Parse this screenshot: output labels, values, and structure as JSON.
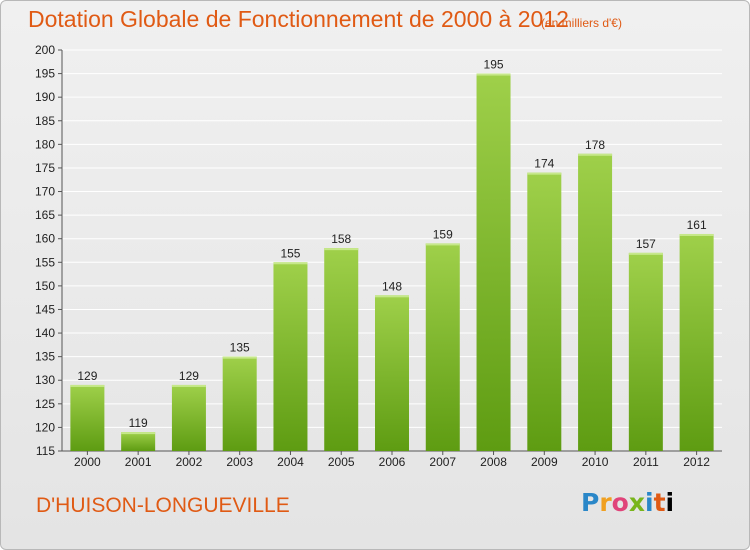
{
  "title": "Dotation Globale de Fonctionnement de 2000 à 2012",
  "unit_note": "(en milliers d'€)",
  "place": "D'HUISON-LONGUEVILLE",
  "logo": [
    "P",
    "r",
    "o",
    "x",
    "i",
    "t",
    "i"
  ],
  "colors": {
    "text_accent": "#e05a14",
    "bar_top": "#9fd04a",
    "bar_bottom": "#5e9c12",
    "grid": "#ffffff"
  },
  "chart_data": {
    "type": "bar",
    "title": "Dotation Globale de Fonctionnement de 2000 à 2012",
    "subtitle": "(en milliers d'€)",
    "categories": [
      "2000",
      "2001",
      "2002",
      "2003",
      "2004",
      "2005",
      "2006",
      "2007",
      "2008",
      "2009",
      "2010",
      "2011",
      "2012"
    ],
    "values": [
      129,
      119,
      129,
      135,
      155,
      158,
      148,
      159,
      195,
      174,
      178,
      157,
      161
    ],
    "ylim": [
      115,
      200
    ],
    "yticks": [
      115,
      120,
      125,
      130,
      135,
      140,
      145,
      150,
      155,
      160,
      165,
      170,
      175,
      180,
      185,
      190,
      195,
      200
    ],
    "grid": true,
    "xlabel": "",
    "ylabel": ""
  }
}
